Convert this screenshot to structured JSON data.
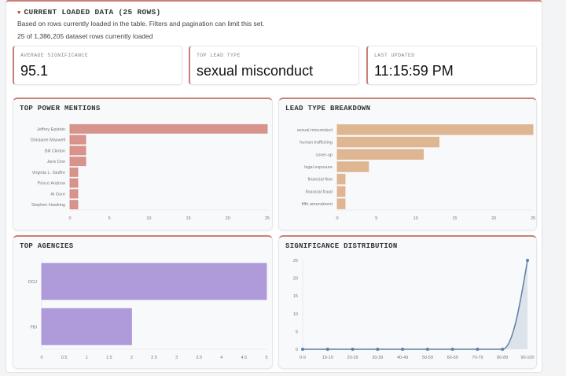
{
  "section": {
    "title": "CURRENT LOADED DATA (25 ROWS)",
    "toggle_icon": "triangle-down-icon",
    "description": "Based on rows currently loaded in the table. Filters and pagination can limit this set.",
    "count_text": "25 of 1,386,205 dataset rows currently loaded"
  },
  "metrics": [
    {
      "label": "AVERAGE SIGNIFICANCE",
      "value": "95.1"
    },
    {
      "label": "TOP LEAD TYPE",
      "value": "sexual misconduct"
    },
    {
      "label": "LAST UPDATED",
      "value": "11:15:59 PM"
    }
  ],
  "colors": {
    "accent": "#c9807a",
    "power": "#d4877f",
    "lead": "#dcae86",
    "agency": "#a68fd6",
    "dist": "#5c7fa8"
  },
  "chart_data": [
    {
      "id": "power",
      "title": "TOP POWER MENTIONS",
      "type": "bar",
      "orientation": "horizontal",
      "categories": [
        "Jeffrey Epstein",
        "Ghislaine Maxwell",
        "Bill Clinton",
        "Jane Doe",
        "Virginia L. Giuffre",
        "Prince Andrew",
        "Al Gore",
        "Stephen Hawking"
      ],
      "values": [
        25,
        2,
        2,
        2,
        1,
        1,
        1,
        1
      ],
      "xlim": [
        0,
        25
      ],
      "ticks": [
        0,
        5,
        10,
        15,
        20,
        25
      ]
    },
    {
      "id": "lead",
      "title": "LEAD TYPE BREAKDOWN",
      "type": "bar",
      "orientation": "horizontal",
      "categories": [
        "sexual misconduct",
        "human trafficking",
        "cover-up",
        "legal exposure",
        "financial flow",
        "financial fraud",
        "fifth amendment"
      ],
      "values": [
        25,
        13,
        11,
        4,
        1,
        1,
        1
      ],
      "xlim": [
        0,
        25
      ],
      "ticks": [
        0,
        5,
        10,
        15,
        20,
        25
      ]
    },
    {
      "id": "agency",
      "title": "TOP AGENCIES",
      "type": "bar",
      "orientation": "horizontal",
      "categories": [
        "DOJ",
        "FBI"
      ],
      "values": [
        5,
        2
      ],
      "xlim": [
        0,
        5
      ],
      "ticks": [
        0,
        0.5,
        1,
        1.5,
        2,
        2.5,
        3,
        3.5,
        4,
        4.5,
        5
      ]
    },
    {
      "id": "dist",
      "title": "SIGNIFICANCE DISTRIBUTION",
      "type": "area",
      "categories": [
        "0-9",
        "10-19",
        "20-29",
        "30-39",
        "40-49",
        "50-59",
        "60-69",
        "70-79",
        "80-89",
        "90-100"
      ],
      "values": [
        0,
        0,
        0,
        0,
        0,
        0,
        0,
        0,
        0,
        25
      ],
      "ylim": [
        0,
        25
      ],
      "ticks": [
        0,
        5,
        10,
        15,
        20,
        25
      ]
    }
  ]
}
